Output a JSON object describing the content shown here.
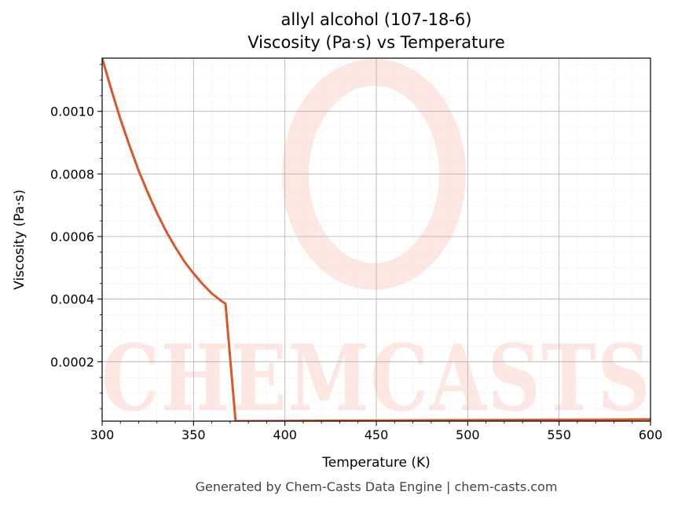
{
  "chart_data": {
    "type": "line",
    "title_line1": "allyl alcohol (107-18-6)",
    "title_line2": "Viscosity (Pa·s) vs Temperature",
    "xlabel": "Temperature (K)",
    "ylabel": "Viscosity (Pa·s)",
    "xlim": [
      300,
      600
    ],
    "ylim": [
      1e-05,
      0.00117
    ],
    "x_ticks": [
      300,
      350,
      400,
      450,
      500,
      550,
      600
    ],
    "x_tick_labels": [
      "300",
      "350",
      "400",
      "450",
      "500",
      "550",
      "600"
    ],
    "y_ticks": [
      0.0002,
      0.0004,
      0.0006,
      0.0008,
      0.001
    ],
    "y_tick_labels": [
      "0.0002",
      "0.0004",
      "0.0006",
      "0.0008",
      "0.0010"
    ],
    "grid": true,
    "series": [
      {
        "color": "#d9572b",
        "x": [
          300,
          305,
          310,
          315,
          320,
          325,
          330,
          335,
          340,
          345,
          350,
          355,
          360,
          365,
          367.5,
          373,
          380,
          400,
          450,
          500,
          550,
          600
        ],
        "y": [
          0.00117,
          0.00107,
          0.000975,
          0.00089,
          0.00081,
          0.00074,
          0.000675,
          0.000617,
          0.000566,
          0.00052,
          0.000482,
          0.000448,
          0.000418,
          0.000395,
          0.000385,
          9.9e-06,
          1.01e-05,
          1.06e-05,
          1.18e-05,
          1.31e-05,
          1.43e-05,
          1.55e-05
        ]
      }
    ]
  },
  "watermark": {
    "text": "CHEMCASTS",
    "color": "#fde3dd"
  },
  "footer": "Generated by Chem-Casts Data Engine | chem-casts.com"
}
